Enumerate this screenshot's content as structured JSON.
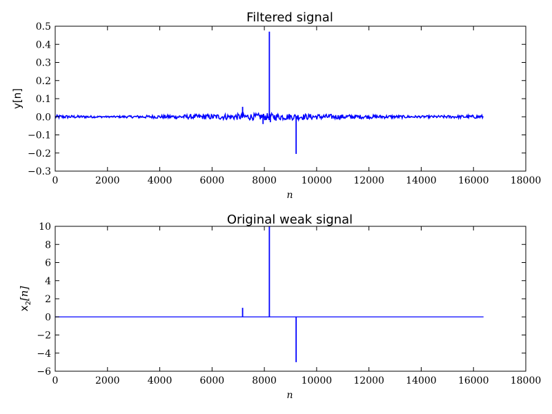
{
  "chart_data": [
    {
      "type": "line",
      "title": "Filtered signal",
      "xlabel": "n",
      "ylabel": "y[n]",
      "xlim": [
        0,
        18000
      ],
      "ylim": [
        -0.3,
        0.5
      ],
      "xticks": [
        "0",
        "2000",
        "4000",
        "6000",
        "8000",
        "10000",
        "12000",
        "14000",
        "16000",
        "18000"
      ],
      "yticks": [
        "−0.3",
        "−0.2",
        "−0.1",
        "0.0",
        "0.1",
        "0.2",
        "0.3",
        "0.4",
        "0.5"
      ],
      "line_color": "#0000ff",
      "noise_amplitude": {
        "x": [
          0,
          2000,
          6000,
          8200,
          10000,
          14000,
          16384
        ],
        "amp": [
          0.01,
          0.004,
          0.015,
          0.02,
          0.015,
          0.006,
          0.01
        ]
      },
      "spikes": [
        {
          "x": 7168,
          "y": 0.055
        },
        {
          "x": 7950,
          "y": -0.04
        },
        {
          "x": 8192,
          "y": 0.47
        },
        {
          "x": 8230,
          "y": -0.03
        },
        {
          "x": 9216,
          "y": -0.205
        }
      ],
      "n_samples": 16384
    },
    {
      "type": "line",
      "title": "Original weak signal",
      "xlabel": "n",
      "ylabel_prefix": "x",
      "ylabel_sub": "2",
      "ylabel_suffix": "[n]",
      "xlim": [
        0,
        18000
      ],
      "ylim": [
        -6,
        10
      ],
      "xticks": [
        "0",
        "2000",
        "4000",
        "6000",
        "8000",
        "10000",
        "12000",
        "14000",
        "16000",
        "18000"
      ],
      "yticks": [
        "−6",
        "−4",
        "−2",
        "0",
        "2",
        "4",
        "6",
        "8",
        "10"
      ],
      "line_color": "#0000ff",
      "spikes": [
        {
          "x": 7168,
          "y": 1.0
        },
        {
          "x": 8192,
          "y": 10
        },
        {
          "x": 9216,
          "y": -5
        }
      ],
      "n_samples": 16384
    }
  ]
}
